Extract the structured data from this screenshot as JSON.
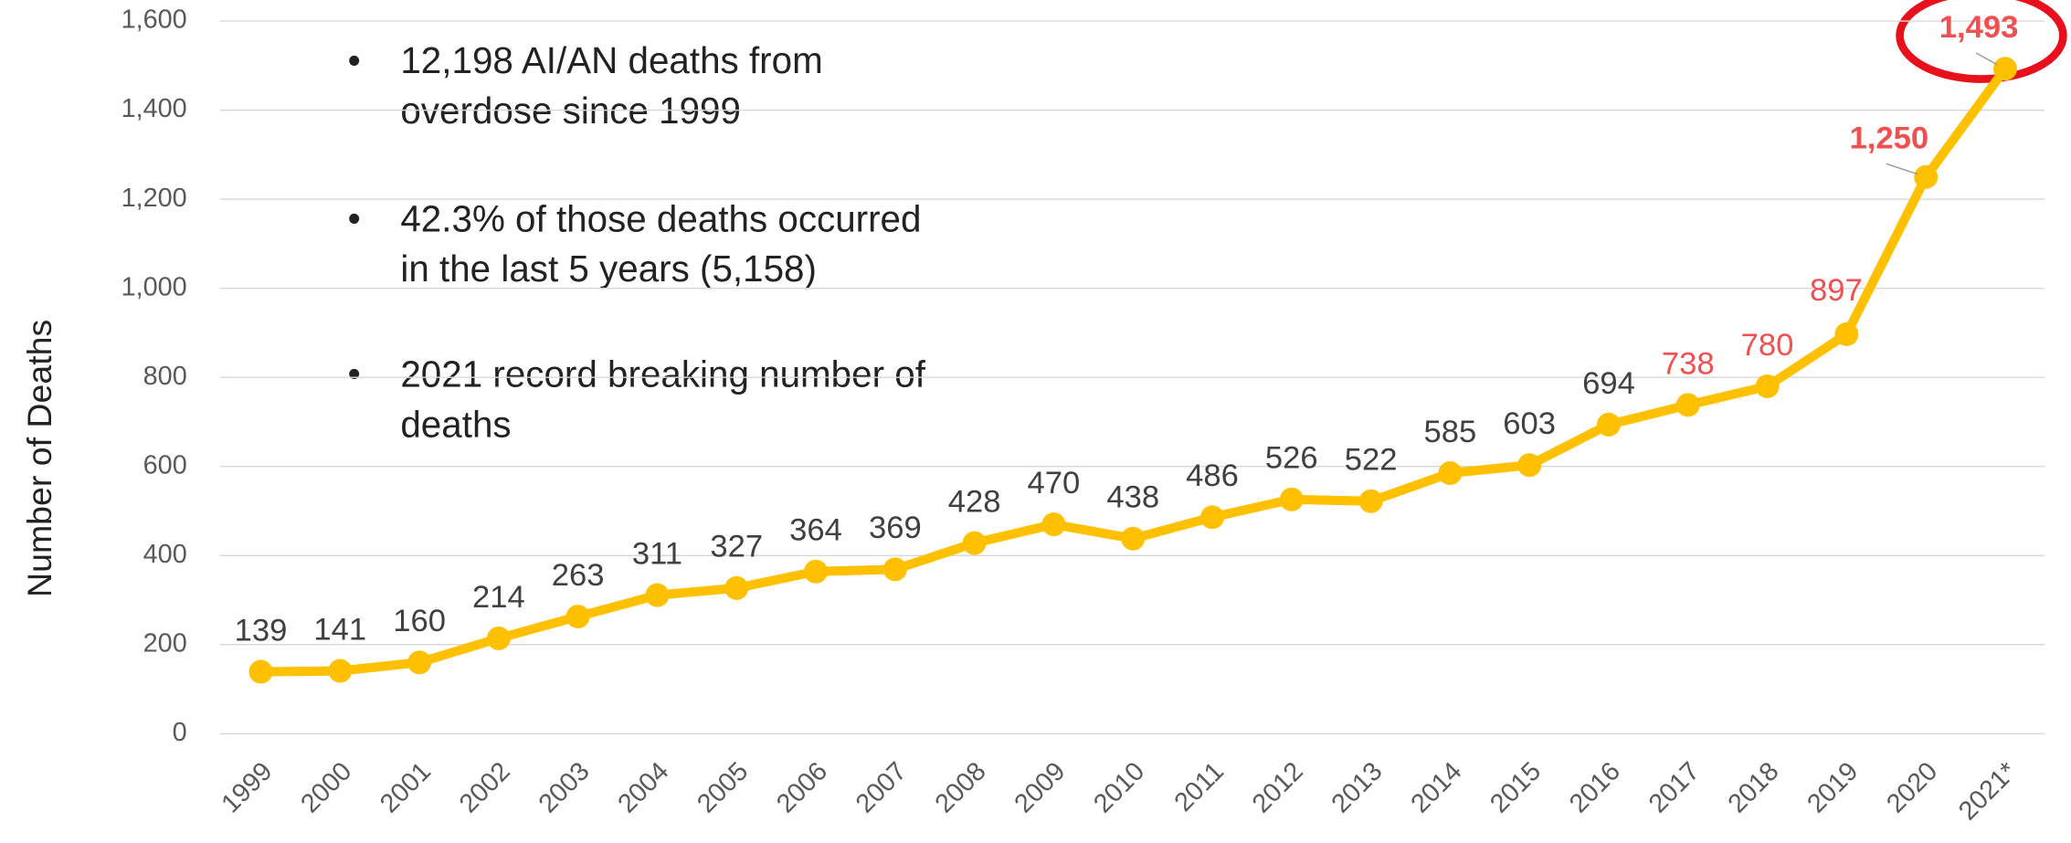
{
  "chart_data": {
    "type": "line",
    "y_label": "Number of Deaths",
    "annotations": [
      "12,198 AI/AN deaths from overdose since 1999",
      "42.3% of those deaths occurred in the last 5 years (5,158)",
      "2021 record breaking number of deaths"
    ],
    "categories": [
      "1999",
      "2000",
      "2001",
      "2002",
      "2003",
      "2004",
      "2005",
      "2006",
      "2007",
      "2008",
      "2009",
      "2010",
      "2011",
      "2012",
      "2013",
      "2014",
      "2015",
      "2016",
      "2017",
      "2018",
      "2019",
      "2020",
      "2021*"
    ],
    "values": [
      139,
      141,
      160,
      214,
      263,
      311,
      327,
      364,
      369,
      428,
      470,
      438,
      486,
      526,
      522,
      585,
      603,
      694,
      738,
      780,
      897,
      1250,
      1493
    ],
    "value_labels": [
      "139",
      "141",
      "160",
      "214",
      "263",
      "311",
      "327",
      "364",
      "369",
      "428",
      "470",
      "438",
      "486",
      "526",
      "522",
      "585",
      "603",
      "694",
      "738",
      "780",
      "897",
      "1,250",
      "1,493"
    ],
    "label_colors": [
      "#404040",
      "#404040",
      "#404040",
      "#404040",
      "#404040",
      "#404040",
      "#404040",
      "#404040",
      "#404040",
      "#404040",
      "#404040",
      "#404040",
      "#404040",
      "#404040",
      "#404040",
      "#404040",
      "#404040",
      "#404040",
      "#f05050",
      "#f05050",
      "#f05050",
      "#f05050",
      "#f05050"
    ],
    "color": "#ffc000",
    "ylim": [
      0,
      1600
    ],
    "yticks": [
      0,
      200,
      400,
      600,
      800,
      {
        "value": 1000,
        "label": "1,000"
      },
      {
        "value": 1200,
        "label": "1,200"
      },
      {
        "value": 1400,
        "label": "1,400"
      },
      {
        "value": 1600,
        "label": "1,600"
      }
    ],
    "grid": true
  }
}
